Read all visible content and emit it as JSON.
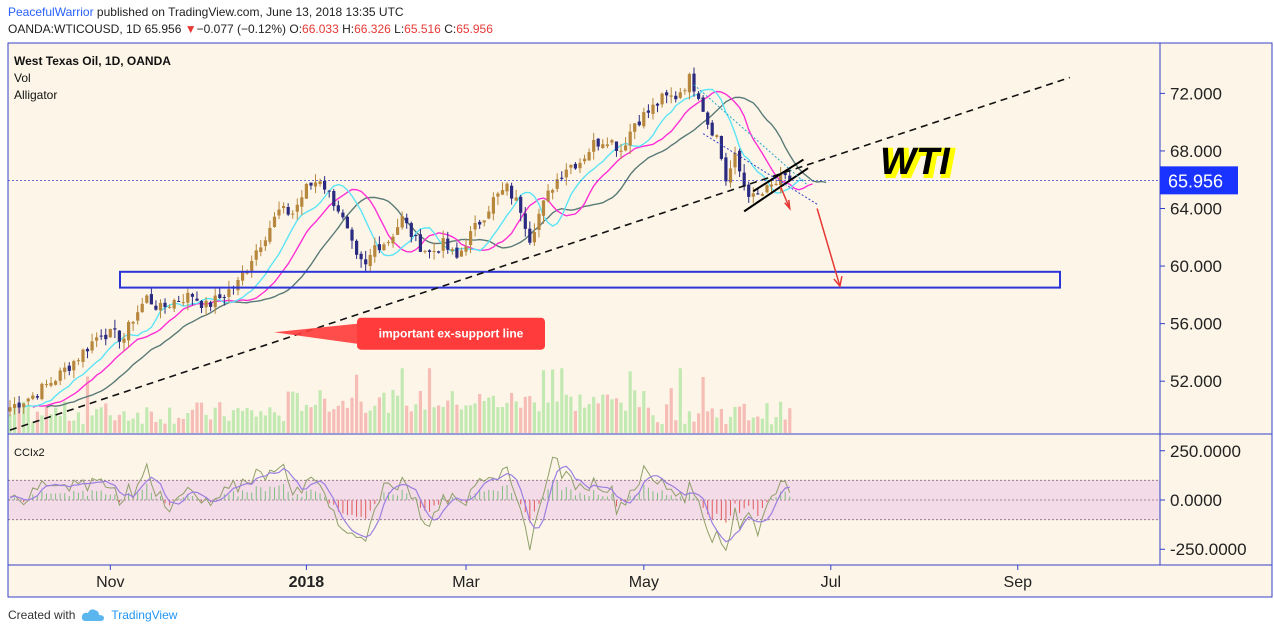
{
  "header": {
    "author": "PeacefulWarrior",
    "published_text": " published on TradingView.com, June 13, 2018 13:35 UTC",
    "symbol_line": "OANDA:WTICOUSD, 1D 65.956",
    "change_arrow": "▼",
    "change": "−0.077 (−0.12%)",
    "o_label": "O:",
    "o_value": "66.033",
    "h_label": "H:",
    "h_value": "66.326",
    "l_label": "L:",
    "l_value": "65.516",
    "c_label": "C:",
    "c_value": "65.956"
  },
  "legend": {
    "main": "West Texas Oil, 1D, OANDA",
    "vol": "Vol",
    "alligator": "Alligator",
    "cci": "CCIx2"
  },
  "footer": {
    "created_with": "Created with",
    "brand": "TradingView"
  },
  "colors": {
    "background": "#fdf6e8",
    "frame": "#3340c8",
    "up": "#b7873d",
    "down": "#2a2a80",
    "jaw": "#5a7a78",
    "teeth": "#ff2fd6",
    "lips": "#5ce3f5",
    "price_tag": "#1a33ff",
    "callout": "#ff3b3b",
    "wti_text": "#000000",
    "wti_glow": "#ffff00"
  },
  "chart_data": {
    "type": "candlestick",
    "title": "West Texas Oil, 1D, OANDA",
    "xlabel": "",
    "ylabel": "",
    "x_ticks": [
      "Nov",
      "2018",
      "Mar",
      "May",
      "Jul",
      "Sep"
    ],
    "y_ticks": [
      "72.000",
      "68.000",
      "64.000",
      "60.000",
      "56.000",
      "52.000"
    ],
    "ylim": [
      48.4,
      75.5
    ],
    "last_price": "65.956",
    "annotations": {
      "callout": "important ex-support line",
      "label": "WTI",
      "support_zone": [
        58.5,
        59.6
      ]
    },
    "price_path": [
      [
        0,
        50.2
      ],
      [
        5,
        51.0
      ],
      [
        10,
        52.2
      ],
      [
        15,
        53.7
      ],
      [
        20,
        55.4
      ],
      [
        25,
        55.0
      ],
      [
        27,
        56.4
      ],
      [
        30,
        57.8
      ],
      [
        33,
        57.0
      ],
      [
        36,
        57.6
      ],
      [
        40,
        58.0
      ],
      [
        43,
        57.2
      ],
      [
        46,
        57.8
      ],
      [
        50,
        58.8
      ],
      [
        53,
        60.6
      ],
      [
        56,
        62.2
      ],
      [
        59,
        63.8
      ],
      [
        62,
        63.7
      ],
      [
        65,
        65.4
      ],
      [
        68,
        66.1
      ],
      [
        70,
        65.0
      ],
      [
        72,
        64.0
      ],
      [
        74,
        62.3
      ],
      [
        76,
        60.4
      ],
      [
        78,
        59.9
      ],
      [
        80,
        61.4
      ],
      [
        83,
        61.8
      ],
      [
        86,
        63.3
      ],
      [
        89,
        61.7
      ],
      [
        92,
        60.9
      ],
      [
        95,
        61.5
      ],
      [
        98,
        60.5
      ],
      [
        100,
        61.7
      ],
      [
        103,
        63.1
      ],
      [
        106,
        64.6
      ],
      [
        109,
        65.4
      ],
      [
        112,
        64.0
      ],
      [
        114,
        62.0
      ],
      [
        116,
        63.6
      ],
      [
        119,
        65.6
      ],
      [
        122,
        66.9
      ],
      [
        125,
        67.3
      ],
      [
        128,
        68.5
      ],
      [
        131,
        68.9
      ],
      [
        134,
        68.1
      ],
      [
        137,
        70.0
      ],
      [
        140,
        70.7
      ],
      [
        143,
        71.6
      ],
      [
        146,
        71.8
      ],
      [
        149,
        73.0
      ],
      [
        151,
        72.0
      ],
      [
        153,
        70.0
      ],
      [
        155,
        69.0
      ],
      [
        157,
        66.0
      ],
      [
        159,
        67.5
      ],
      [
        161,
        65.6
      ],
      [
        163,
        64.7
      ],
      [
        165,
        65.0
      ],
      [
        167,
        65.5
      ],
      [
        169,
        66.0
      ],
      [
        171,
        65.96
      ]
    ],
    "volume_zone": [
      48.4,
      52.9
    ],
    "cci": {
      "ylim": [
        -330,
        330
      ],
      "y_ticks": [
        "250.0000",
        "0.0000",
        "-250.0000"
      ],
      "band": [
        -100,
        100
      ]
    }
  }
}
